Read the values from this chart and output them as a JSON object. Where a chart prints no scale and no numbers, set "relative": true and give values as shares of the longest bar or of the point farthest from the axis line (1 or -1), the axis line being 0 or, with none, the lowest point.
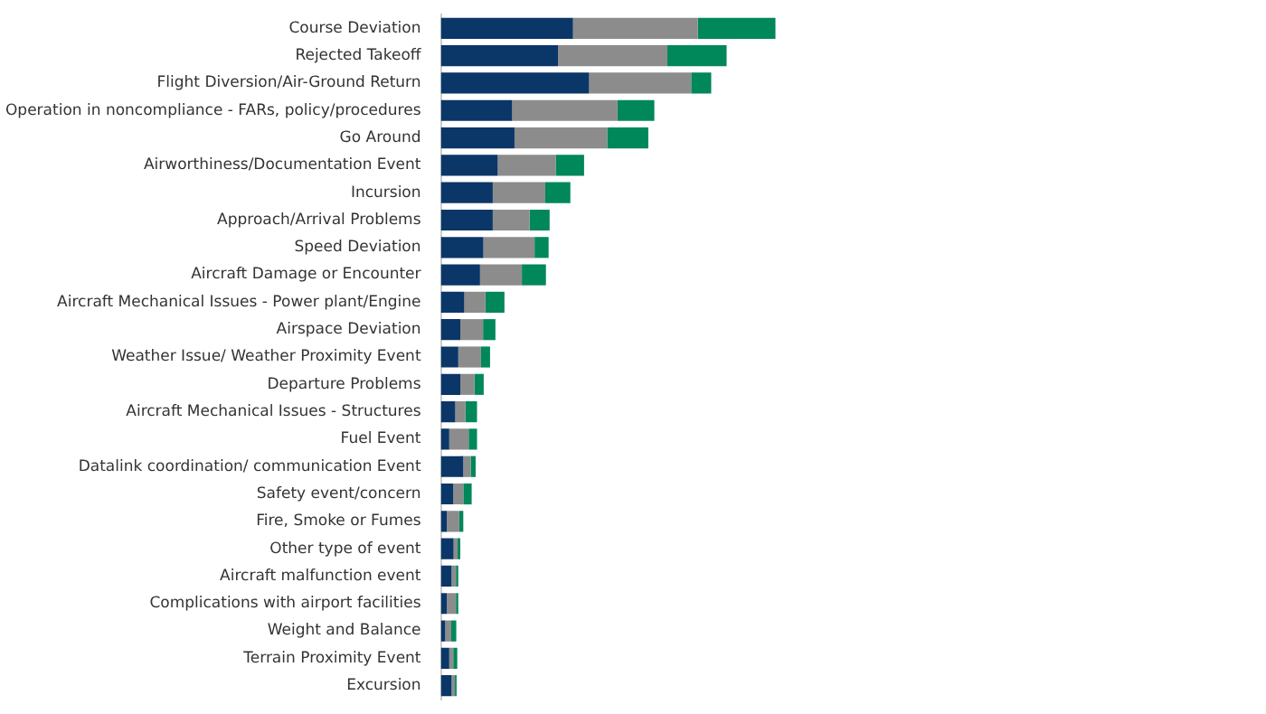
{
  "chart_data": {
    "type": "bar",
    "orientation": "horizontal",
    "stacked": true,
    "relative": true,
    "categories": [
      "Course Deviation",
      "Rejected Takeoff",
      "Flight Diversion/Air-Ground Return",
      "Operation in noncompliance - FARs, policy/procedures",
      "Go Around",
      "Airworthiness/Documentation Event",
      "Incursion",
      "Approach/Arrival Problems",
      "Speed Deviation",
      "Aircraft Damage or Encounter",
      "Aircraft Mechanical Issues - Power plant/Engine",
      "Airspace Deviation",
      "Weather Issue/ Weather Proximity Event",
      "Departure Problems",
      "Aircraft Mechanical Issues - Structures",
      "Fuel Event",
      "Datalink coordination/ communication Event",
      "Safety event/concern",
      "Fire, Smoke or Fumes",
      "Other type of event",
      "Aircraft malfunction event",
      "Complications with airport facilities",
      "Weight and Balance",
      "Terrain Proximity Event",
      "Excursion"
    ],
    "series": [
      {
        "color": "#0b3668",
        "values": [
          0.395,
          0.35,
          0.443,
          0.213,
          0.22,
          0.17,
          0.155,
          0.155,
          0.127,
          0.117,
          0.07,
          0.058,
          0.052,
          0.058,
          0.043,
          0.025,
          0.067,
          0.037,
          0.018,
          0.038,
          0.032,
          0.018,
          0.013,
          0.025,
          0.032
        ]
      },
      {
        "color": "#8c8c8c",
        "values": [
          0.373,
          0.327,
          0.305,
          0.315,
          0.277,
          0.173,
          0.157,
          0.11,
          0.153,
          0.125,
          0.063,
          0.068,
          0.068,
          0.042,
          0.03,
          0.058,
          0.022,
          0.03,
          0.037,
          0.012,
          0.013,
          0.027,
          0.018,
          0.012,
          0.01
        ]
      },
      {
        "color": "#00875a",
        "values": [
          0.232,
          0.177,
          0.06,
          0.11,
          0.123,
          0.085,
          0.075,
          0.06,
          0.042,
          0.072,
          0.057,
          0.037,
          0.027,
          0.028,
          0.035,
          0.025,
          0.015,
          0.025,
          0.012,
          0.008,
          0.007,
          0.007,
          0.015,
          0.012,
          0.005
        ]
      }
    ]
  }
}
